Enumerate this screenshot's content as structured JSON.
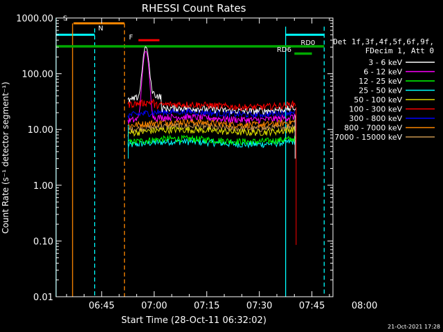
{
  "chart_data": {
    "type": "line",
    "title": "RHESSI Count Rates",
    "ylabel": "Count Rate (s⁻¹ detector segment⁻¹)",
    "xlabel": "Start Time (28-Oct-11 06:32:02)",
    "y_scale": "log",
    "ylim": [
      0.01,
      1000
    ],
    "y_ticks": [
      "1000.00",
      "100.00",
      "10.00",
      "1.00",
      "0.10",
      "0.01"
    ],
    "xlim_minutes_since_0632": [
      0,
      79
    ],
    "x_ticks": [
      "06:45",
      "07:00",
      "07:15",
      "07:30",
      "07:45",
      "08:00"
    ],
    "legend_header": [
      "Det 1f,3f,4f,5f,6f,9f,",
      "FDecim 1, Att 0"
    ],
    "legend_position": "right",
    "series": [
      {
        "name": "3 - 6 keV",
        "color": "#ffffff",
        "mean": 23
      },
      {
        "name": "6 - 12 keV",
        "color": "#ff00ff",
        "mean": 16
      },
      {
        "name": "12 - 25 keV",
        "color": "#00ff00",
        "mean": 6.5
      },
      {
        "name": "25 - 50 keV",
        "color": "#00ffff",
        "mean": 5.8
      },
      {
        "name": "50 - 100 keV",
        "color": "#dddd00",
        "mean": 9.5
      },
      {
        "name": "100 - 300 keV",
        "color": "#ff0000",
        "mean": 27
      },
      {
        "name": "300 - 800 keV",
        "color": "#0000ff",
        "mean": 20
      },
      {
        "name": "800 - 7000 keV",
        "color": "#ff8800",
        "mean": 13
      },
      {
        "name": "7000 - 15000 keV",
        "color": "#c89650",
        "mean": 11
      }
    ],
    "annotations": [
      {
        "label": "S",
        "color": "#ff8800"
      },
      {
        "label": "N",
        "color": "#00ffff"
      },
      {
        "label": "F",
        "color": "#ff0000"
      },
      {
        "label": "RD0",
        "color": "#00aa00"
      },
      {
        "label": "RD6",
        "color": "#00aa00"
      }
    ],
    "footer_date": "21-Oct-2021 17:28"
  }
}
